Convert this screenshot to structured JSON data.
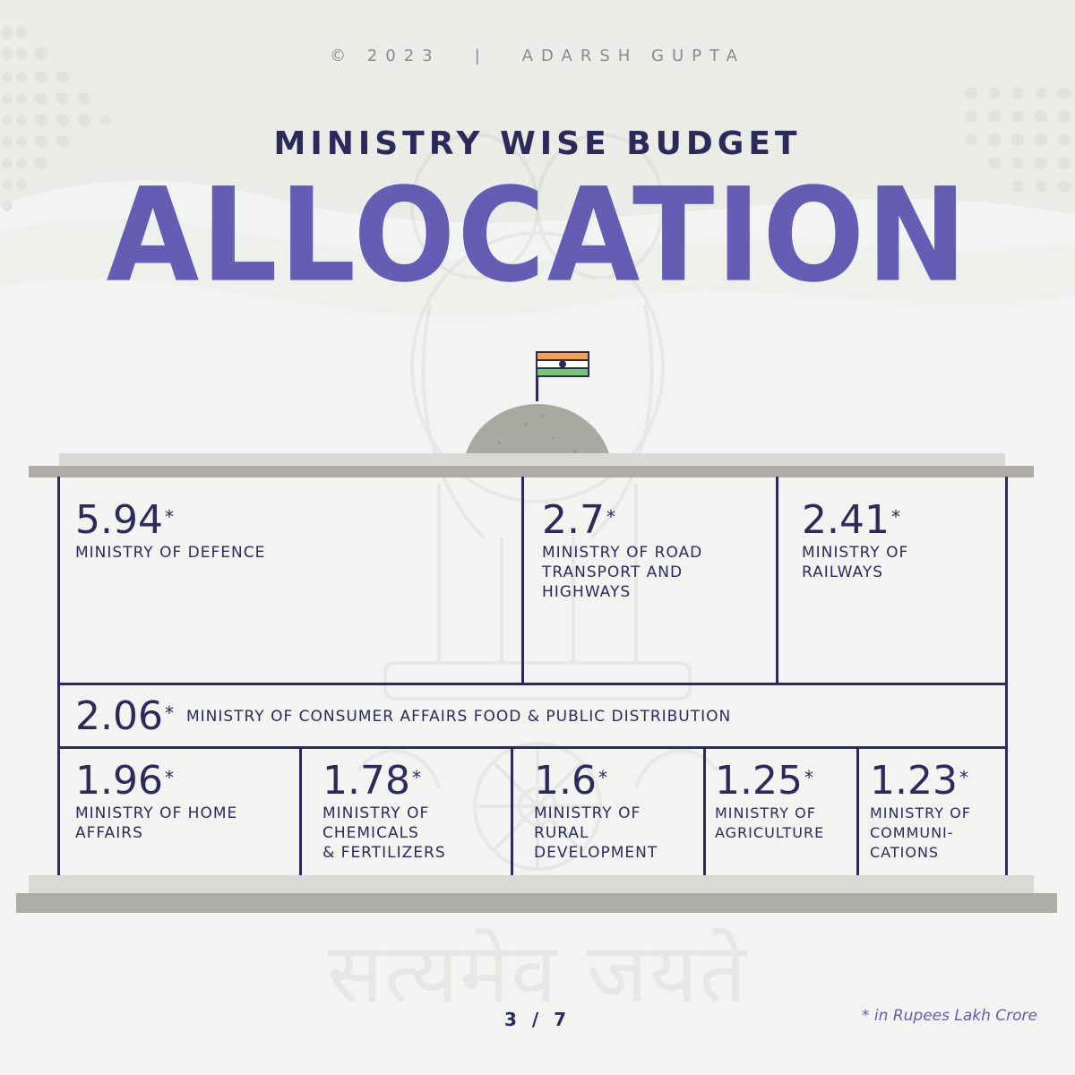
{
  "header": {
    "copyright": "© 2023",
    "separator": "|",
    "author": "ADARSH GUPTA"
  },
  "subtitle": "MINISTRY WISE BUDGET",
  "title": "ALLOCATION",
  "motto": "सत्यमेव जयते",
  "colors": {
    "accent": "#655cb4",
    "navy": "#2c2a5b",
    "beam": "#adada6",
    "background": "#f3f3f1"
  },
  "ministries": [
    {
      "value": "5.94",
      "mark": "*",
      "label": "MINISTRY OF DEFENCE"
    },
    {
      "value": "2.7",
      "mark": "*",
      "label": "MINISTRY OF ROAD\nTRANSPORT AND\nHIGHWAYS"
    },
    {
      "value": "2.41",
      "mark": "*",
      "label": "MINISTRY OF\nRAILWAYS"
    },
    {
      "value": "2.06",
      "mark": "*",
      "label": "MINISTRY OF CONSUMER AFFAIRS FOOD & PUBLIC DISTRIBUTION"
    },
    {
      "value": "1.96",
      "mark": "*",
      "label": "MINISTRY OF HOME\nAFFAIRS"
    },
    {
      "value": "1.78",
      "mark": "*",
      "label": "MINISTRY OF\nCHEMICALS\n& FERTILIZERS"
    },
    {
      "value": "1.6",
      "mark": "*",
      "label": "MINISTRY OF\nRURAL\nDEVELOPMENT"
    },
    {
      "value": "1.25",
      "mark": "*",
      "label": "MINISTRY OF\nAGRICULTURE"
    },
    {
      "value": "1.23",
      "mark": "*",
      "label": "MINISTRY OF\nCOMMUNI-\nCATIONS"
    }
  ],
  "page_indicator": "3 / 7",
  "footnote": "* in Rupees Lakh Crore",
  "icons": [
    "india-flag-icon",
    "parliament-dome-icon",
    "ashoka-emblem-icon",
    "dot-pattern-icon"
  ]
}
